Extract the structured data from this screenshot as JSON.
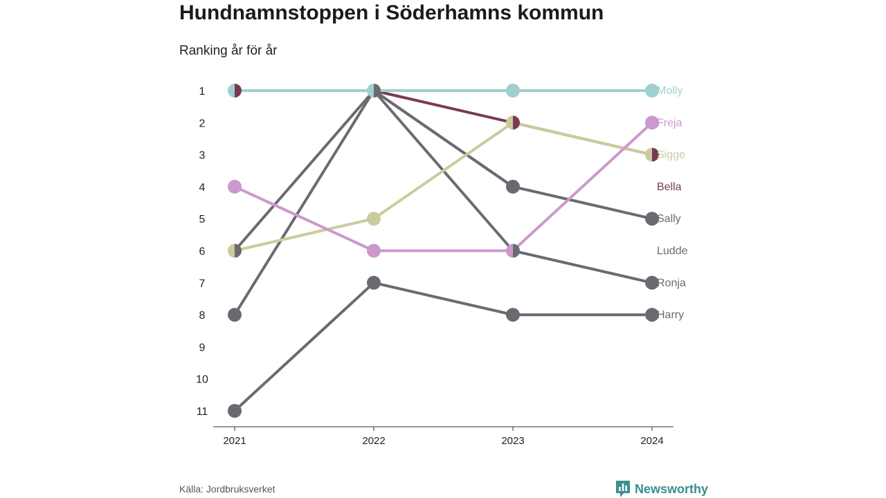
{
  "title": "Hundnamnstoppen i Söderhamns kommun",
  "subtitle": "Ranking år för år",
  "source": "Källa: Jordbruksverket",
  "brand": "Newsworthy",
  "colors": {
    "brand": "#3a8f8f",
    "axis": "#333333"
  },
  "chart_data": {
    "type": "line",
    "subtype": "bump",
    "x": [
      "2021",
      "2022",
      "2023",
      "2024"
    ],
    "y_ticks": [
      "1",
      "2",
      "3",
      "4",
      "5",
      "6",
      "7",
      "8",
      "9",
      "10",
      "11"
    ],
    "ylim": [
      1,
      11
    ],
    "y_inverted": true,
    "series": [
      {
        "name": "Harry",
        "color": "#6b6a71",
        "ranks": [
          11,
          7,
          8,
          8
        ]
      },
      {
        "name": "Ludde",
        "color": "#6b6a71",
        "ranks": [
          8,
          1,
          4,
          null
        ]
      },
      {
        "name": "Ronja",
        "color": "#6b6a71",
        "ranks": [
          null,
          1,
          6,
          7
        ]
      },
      {
        "name": "Sally",
        "color": "#6b6a71",
        "ranks": [
          6,
          1,
          4,
          5
        ]
      },
      {
        "name": "Bella",
        "color": "#7a3a52",
        "ranks": [
          1,
          1,
          2,
          3
        ]
      },
      {
        "name": "Sigge",
        "color": "#cccb9c",
        "ranks": [
          6,
          5,
          2,
          3
        ]
      },
      {
        "name": "Freja",
        "color": "#cc99cc",
        "ranks": [
          4,
          6,
          6,
          2
        ]
      },
      {
        "name": "Molly",
        "color": "#9fcfcf",
        "ranks": [
          1,
          1,
          1,
          1
        ]
      }
    ],
    "label_order": [
      "Molly",
      "Freja",
      "Sigge",
      "Bella",
      "Sally",
      "Ludde",
      "Ronja",
      "Harry"
    ]
  }
}
